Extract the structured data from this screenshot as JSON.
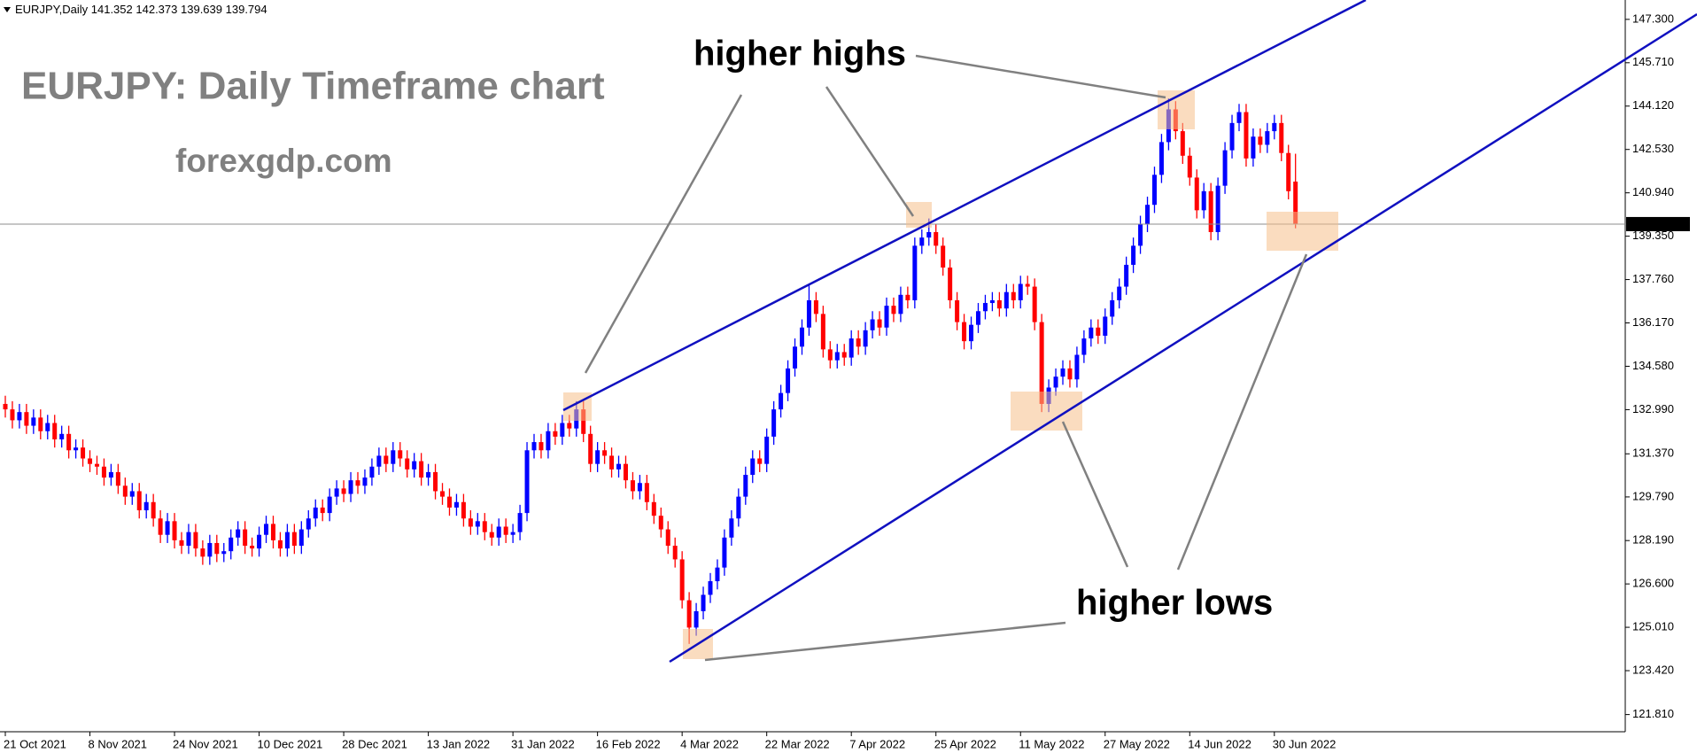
{
  "chart_data": {
    "type": "candlestick",
    "symbol": "EURJPY,Daily",
    "title": "EURJPY: Daily Timeframe chart",
    "subtitle": "forexgdp.com",
    "annotations": [
      "higher highs",
      "higher lows"
    ],
    "up_color": "#0000ff",
    "down_color": "#ff0000",
    "grid": false,
    "ylim": [
      121.18,
      148.01
    ],
    "yticks": [
      {
        "value": 147.3,
        "label": "147.300"
      },
      {
        "value": 145.71,
        "label": "145.710"
      },
      {
        "value": 144.12,
        "label": "144.120"
      },
      {
        "value": 142.53,
        "label": "142.530"
      },
      {
        "value": 140.94,
        "label": "140.940"
      },
      {
        "value": 139.35,
        "label": "139.350"
      },
      {
        "value": 137.76,
        "label": "137.760"
      },
      {
        "value": 136.17,
        "label": "136.170"
      },
      {
        "value": 134.58,
        "label": "134.580"
      },
      {
        "value": 132.99,
        "label": "132.990"
      },
      {
        "value": 131.37,
        "label": "131.370"
      },
      {
        "value": 129.79,
        "label": "129.790"
      },
      {
        "value": 128.19,
        "label": "128.190"
      },
      {
        "value": 126.6,
        "label": "126.600"
      },
      {
        "value": 125.01,
        "label": "125.010"
      },
      {
        "value": 123.42,
        "label": "123.420"
      },
      {
        "value": 121.81,
        "label": "121.810"
      }
    ],
    "categories": [
      "21 Oct 2021",
      null,
      null,
      null,
      null,
      null,
      null,
      null,
      null,
      null,
      null,
      null,
      "8 Nov 2021",
      null,
      null,
      null,
      null,
      null,
      null,
      null,
      null,
      null,
      null,
      null,
      "24 Nov 2021",
      null,
      null,
      null,
      null,
      null,
      null,
      null,
      null,
      null,
      null,
      null,
      "10 Dec 2021",
      null,
      null,
      null,
      null,
      null,
      null,
      null,
      null,
      null,
      null,
      null,
      "28 Dec 2021",
      null,
      null,
      null,
      null,
      null,
      null,
      null,
      null,
      null,
      null,
      null,
      "13 Jan 2022",
      null,
      null,
      null,
      null,
      null,
      null,
      null,
      null,
      null,
      null,
      null,
      "31 Jan 2022",
      null,
      null,
      null,
      null,
      null,
      null,
      null,
      null,
      null,
      null,
      null,
      "16 Feb 2022",
      null,
      null,
      null,
      null,
      null,
      null,
      null,
      null,
      null,
      null,
      null,
      "4 Mar 2022",
      null,
      null,
      null,
      null,
      null,
      null,
      null,
      null,
      null,
      null,
      null,
      "22 Mar 2022",
      null,
      null,
      null,
      null,
      null,
      null,
      null,
      null,
      null,
      null,
      null,
      "7 Apr 2022",
      null,
      null,
      null,
      null,
      null,
      null,
      null,
      null,
      null,
      null,
      null,
      "25 Apr 2022",
      null,
      null,
      null,
      null,
      null,
      null,
      null,
      null,
      null,
      null,
      null,
      "11 May 2022",
      null,
      null,
      null,
      null,
      null,
      null,
      null,
      null,
      null,
      null,
      null,
      "27 May 2022",
      null,
      null,
      null,
      null,
      null,
      null,
      null,
      null,
      null,
      null,
      null,
      "14 Jun 2022",
      null,
      null,
      null,
      null,
      null,
      null,
      null,
      null,
      null,
      null,
      null,
      "30 Jun 2022",
      null,
      null,
      null
    ],
    "open": [
      133.2,
      133.0,
      132.6,
      132.9,
      132.4,
      132.7,
      132.2,
      132.5,
      131.9,
      132.1,
      131.5,
      131.6,
      131.2,
      131.0,
      130.9,
      130.5,
      130.7,
      130.2,
      129.8,
      130.0,
      129.3,
      129.6,
      129.0,
      128.4,
      128.9,
      128.2,
      128.0,
      128.5,
      127.9,
      127.6,
      128.1,
      127.7,
      127.8,
      128.3,
      128.6,
      128.0,
      127.9,
      128.4,
      128.8,
      128.2,
      127.9,
      128.5,
      128.0,
      128.6,
      129.0,
      129.4,
      129.2,
      129.8,
      130.1,
      129.9,
      130.4,
      130.2,
      130.5,
      130.9,
      131.3,
      131.0,
      131.5,
      131.2,
      130.8,
      131.1,
      130.5,
      130.7,
      130.0,
      129.8,
      129.4,
      129.6,
      129.0,
      128.7,
      128.9,
      128.5,
      128.3,
      128.7,
      128.4,
      128.5,
      129.2,
      131.5,
      131.8,
      131.5,
      132.2,
      132.0,
      132.5,
      132.3,
      133.0,
      132.1,
      131.0,
      131.5,
      131.3,
      130.8,
      131.0,
      130.4,
      130.0,
      130.3,
      129.6,
      129.1,
      128.6,
      128.0,
      127.5,
      126.0,
      125.0,
      125.6,
      126.2,
      126.7,
      127.2,
      128.3,
      129.0,
      129.8,
      130.6,
      131.2,
      131.0,
      132.0,
      133.0,
      133.6,
      134.5,
      135.3,
      136.0,
      137.0,
      136.5,
      135.2,
      134.8,
      135.1,
      134.9,
      135.6,
      135.3,
      135.9,
      136.3,
      136.0,
      136.8,
      136.5,
      137.2,
      137.0,
      139.0,
      139.3,
      139.5,
      139.0,
      138.2,
      137.0,
      136.2,
      135.5,
      136.1,
      136.6,
      136.9,
      137.0,
      136.7,
      137.3,
      137.0,
      137.6,
      137.5,
      136.2,
      133.2,
      133.8,
      134.2,
      134.5,
      134.1,
      135.0,
      135.6,
      136.0,
      135.7,
      136.4,
      137.0,
      137.5,
      138.3,
      139.0,
      139.8,
      140.5,
      141.6,
      142.8,
      144.0,
      143.2,
      142.3,
      141.5,
      140.3,
      141.0,
      139.5,
      141.2,
      142.5,
      143.5,
      143.9,
      142.2,
      143.0,
      142.7,
      143.2,
      143.5,
      142.4,
      141.352
    ],
    "high": [
      133.5,
      133.3,
      133.2,
      133.2,
      133.0,
      133.0,
      132.8,
      132.8,
      132.4,
      132.4,
      131.9,
      131.9,
      131.5,
      131.3,
      131.2,
      131.0,
      131.0,
      130.5,
      130.3,
      130.3,
      129.9,
      129.9,
      129.3,
      129.2,
      129.2,
      128.5,
      128.8,
      128.8,
      128.2,
      128.4,
      128.4,
      128.1,
      128.6,
      128.9,
      128.9,
      128.3,
      128.7,
      129.1,
      129.1,
      128.5,
      128.8,
      128.8,
      128.9,
      129.3,
      129.7,
      129.7,
      130.1,
      130.4,
      130.4,
      130.7,
      130.7,
      130.8,
      131.2,
      131.6,
      131.6,
      131.8,
      131.8,
      131.5,
      131.4,
      131.4,
      131.0,
      131.0,
      130.3,
      130.1,
      129.9,
      129.9,
      129.3,
      129.2,
      129.2,
      128.8,
      129.0,
      129.0,
      128.8,
      129.5,
      131.8,
      132.1,
      132.1,
      132.5,
      132.5,
      132.8,
      132.8,
      133.3,
      133.3,
      132.4,
      131.8,
      131.8,
      131.6,
      131.3,
      131.3,
      130.7,
      130.6,
      130.6,
      129.9,
      129.4,
      128.9,
      128.3,
      127.8,
      126.3,
      125.9,
      126.5,
      127.0,
      127.5,
      128.6,
      129.3,
      130.1,
      130.9,
      131.5,
      131.5,
      132.3,
      133.3,
      133.9,
      134.8,
      135.6,
      136.3,
      137.6,
      137.3,
      136.8,
      135.5,
      135.4,
      135.4,
      135.9,
      135.9,
      136.2,
      136.6,
      136.6,
      137.1,
      137.1,
      137.5,
      137.5,
      139.3,
      139.6,
      140.0,
      139.8,
      139.3,
      138.5,
      137.3,
      136.5,
      136.4,
      136.9,
      137.2,
      137.3,
      137.3,
      137.6,
      137.6,
      137.9,
      137.9,
      137.8,
      136.5,
      134.1,
      134.5,
      134.8,
      134.8,
      135.3,
      135.9,
      136.3,
      136.3,
      136.7,
      137.3,
      137.8,
      138.6,
      139.3,
      140.1,
      140.8,
      141.9,
      143.1,
      144.4,
      144.3,
      143.5,
      142.6,
      141.8,
      141.3,
      141.3,
      141.5,
      142.8,
      143.8,
      144.2,
      144.2,
      143.3,
      143.3,
      143.5,
      143.8,
      143.8,
      142.7,
      142.373
    ],
    "low": [
      132.7,
      132.3,
      132.3,
      132.1,
      132.1,
      131.9,
      131.9,
      131.6,
      131.6,
      131.2,
      131.2,
      130.9,
      130.7,
      130.6,
      130.2,
      130.2,
      129.9,
      129.5,
      129.5,
      129.0,
      129.0,
      128.7,
      128.1,
      128.1,
      127.9,
      127.7,
      127.7,
      127.6,
      127.3,
      127.3,
      127.4,
      127.4,
      127.5,
      128.0,
      127.7,
      127.6,
      127.6,
      128.1,
      127.9,
      127.6,
      127.6,
      127.7,
      127.7,
      128.3,
      128.7,
      128.9,
      128.9,
      129.5,
      129.6,
      129.6,
      129.9,
      129.9,
      130.2,
      130.6,
      130.7,
      130.7,
      130.9,
      130.5,
      130.5,
      130.2,
      130.2,
      129.7,
      129.5,
      129.1,
      129.1,
      128.7,
      128.4,
      128.4,
      128.2,
      128.0,
      128.0,
      128.1,
      128.1,
      128.2,
      128.9,
      131.2,
      131.2,
      131.2,
      131.7,
      131.7,
      132.0,
      132.0,
      131.8,
      130.7,
      130.7,
      131.0,
      130.5,
      130.5,
      130.1,
      129.7,
      129.7,
      129.3,
      128.8,
      128.3,
      127.7,
      127.2,
      125.7,
      124.4,
      124.7,
      125.3,
      125.9,
      126.4,
      126.9,
      128.0,
      128.7,
      129.5,
      130.3,
      130.7,
      130.7,
      131.7,
      132.7,
      133.3,
      134.2,
      135.0,
      135.7,
      136.2,
      134.9,
      134.5,
      134.5,
      134.6,
      134.6,
      135.0,
      135.0,
      135.6,
      135.7,
      135.7,
      136.2,
      136.2,
      136.7,
      136.7,
      138.7,
      139.0,
      138.7,
      137.9,
      136.7,
      135.9,
      135.2,
      135.2,
      135.8,
      136.3,
      136.6,
      136.4,
      136.4,
      136.7,
      136.7,
      137.2,
      135.9,
      132.9,
      132.9,
      133.5,
      133.9,
      133.8,
      133.8,
      134.7,
      135.3,
      135.4,
      135.4,
      136.1,
      136.7,
      137.2,
      138.0,
      138.7,
      139.5,
      140.2,
      141.3,
      142.5,
      142.9,
      142.0,
      141.2,
      140.0,
      140.0,
      139.2,
      139.2,
      140.9,
      142.2,
      143.2,
      141.9,
      141.9,
      142.4,
      142.4,
      142.9,
      142.1,
      140.7,
      139.639
    ],
    "close": [
      133.0,
      132.6,
      132.9,
      132.4,
      132.7,
      132.2,
      132.5,
      131.9,
      132.1,
      131.5,
      131.6,
      131.2,
      131.0,
      130.9,
      130.5,
      130.7,
      130.2,
      129.8,
      130.0,
      129.3,
      129.6,
      129.0,
      128.4,
      128.9,
      128.2,
      128.0,
      128.5,
      127.9,
      127.6,
      128.1,
      127.7,
      127.8,
      128.3,
      128.6,
      128.0,
      127.9,
      128.4,
      128.8,
      128.2,
      127.9,
      128.5,
      128.0,
      128.6,
      129.0,
      129.4,
      129.2,
      129.8,
      130.1,
      129.9,
      130.4,
      130.2,
      130.5,
      130.9,
      131.3,
      131.0,
      131.5,
      131.2,
      130.8,
      131.1,
      130.5,
      130.7,
      130.0,
      129.8,
      129.4,
      129.6,
      129.0,
      128.7,
      128.9,
      128.5,
      128.3,
      128.7,
      128.4,
      128.5,
      129.2,
      131.5,
      131.8,
      131.5,
      132.2,
      132.0,
      132.5,
      132.3,
      133.0,
      132.1,
      131.0,
      131.5,
      131.3,
      130.8,
      131.0,
      130.4,
      130.0,
      130.3,
      129.6,
      129.1,
      128.6,
      128.0,
      127.5,
      126.0,
      125.0,
      125.6,
      126.2,
      126.7,
      127.2,
      128.3,
      129.0,
      129.8,
      130.6,
      131.2,
      131.0,
      132.0,
      133.0,
      133.6,
      134.5,
      135.3,
      136.0,
      137.0,
      136.5,
      135.2,
      134.8,
      135.1,
      134.9,
      135.6,
      135.3,
      135.9,
      136.3,
      136.0,
      136.8,
      136.5,
      137.2,
      137.0,
      139.0,
      139.3,
      139.5,
      139.0,
      138.2,
      137.0,
      136.2,
      135.5,
      136.1,
      136.6,
      136.9,
      137.0,
      136.7,
      137.3,
      137.0,
      137.6,
      137.5,
      136.2,
      133.2,
      133.8,
      134.2,
      134.5,
      134.1,
      135.0,
      135.6,
      136.0,
      135.7,
      136.4,
      137.0,
      137.5,
      138.3,
      139.0,
      139.8,
      140.5,
      141.6,
      142.8,
      144.0,
      143.2,
      142.3,
      141.5,
      140.3,
      141.0,
      139.5,
      141.2,
      142.5,
      143.5,
      143.9,
      142.2,
      143.0,
      142.7,
      143.2,
      143.5,
      142.4,
      141.0,
      139.794
    ]
  }
}
